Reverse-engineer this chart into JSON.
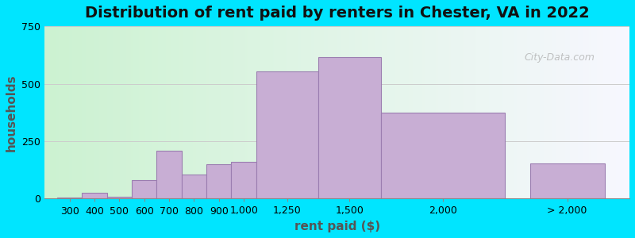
{
  "title": "Distribution of rent paid by renters in Chester, VA in 2022",
  "xlabel": "rent paid ($)",
  "ylabel": "households",
  "bar_color": "#c8aed4",
  "bar_edge_color": "#9b7db0",
  "background_outer": "#00e5ff",
  "background_inner_left": "#b8f0c8",
  "background_inner_right": "#f0f0f8",
  "ylim": [
    0,
    750
  ],
  "yticks": [
    0,
    250,
    500,
    750
  ],
  "categories": [
    "300",
    "400",
    "500",
    "600",
    "700",
    "800",
    "900",
    "1,000",
    "1,250",
    "1,500",
    "2,000",
    "> 2,000"
  ],
  "values": [
    5,
    25,
    10,
    80,
    210,
    105,
    150,
    160,
    555,
    615,
    375,
    155
  ],
  "bar_widths": [
    1,
    1,
    1,
    1,
    1,
    1,
    1,
    1,
    2.5,
    2.5,
    5,
    3
  ],
  "bar_positions": [
    0.5,
    1.5,
    2.5,
    3.5,
    4.5,
    5.5,
    6.5,
    7.5,
    9.25,
    11.75,
    15.5,
    20.5
  ],
  "title_fontsize": 14,
  "axis_label_fontsize": 11,
  "tick_fontsize": 9,
  "watermark_text": "City-Data.com"
}
